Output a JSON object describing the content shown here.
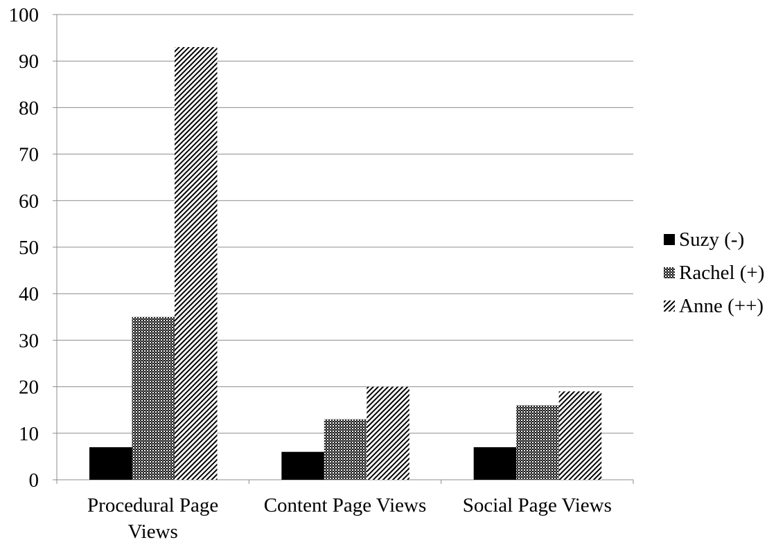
{
  "chart_data": {
    "type": "bar",
    "categories": [
      [
        "Procedural Page",
        "Views"
      ],
      [
        "Content Page Views"
      ],
      [
        "Social Page Views"
      ]
    ],
    "series": [
      {
        "name": "Suzy (-)",
        "values": [
          7,
          6,
          7
        ],
        "pattern": "solid",
        "color": "#000000"
      },
      {
        "name": "Rachel (+)",
        "values": [
          35,
          13,
          16
        ],
        "pattern": "crosshatch",
        "color": "#000000"
      },
      {
        "name": "Anne (++)",
        "values": [
          93,
          20,
          19
        ],
        "pattern": "diagonal",
        "color": "#000000"
      }
    ],
    "title": "",
    "xlabel": "",
    "ylabel": "",
    "ylim": [
      0,
      100
    ],
    "yticks": [
      "0",
      "10",
      "20",
      "30",
      "40",
      "50",
      "60",
      "70",
      "80",
      "90",
      "100"
    ],
    "grid": true,
    "legend_position": "right"
  }
}
